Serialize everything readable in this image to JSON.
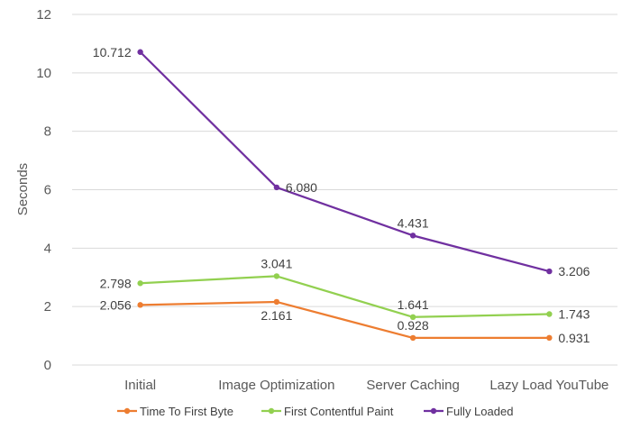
{
  "chart_data": {
    "type": "line",
    "categories": [
      "Initial",
      "Image Optimization",
      "Server Caching",
      "Lazy Load YouTube"
    ],
    "ylabel": "Seconds",
    "ylim": [
      0,
      12
    ],
    "yticks": [
      0,
      2,
      4,
      6,
      8,
      10,
      12
    ],
    "grid": "horizontal",
    "legend_position": "bottom",
    "series": [
      {
        "name": "Time To First Byte",
        "color": "#ed7d31",
        "values": [
          2.056,
          2.161,
          0.928,
          0.931
        ],
        "labels": [
          "2.056",
          "2.161",
          "0.928",
          "0.931"
        ]
      },
      {
        "name": "First Contentful Paint",
        "color": "#92d050",
        "values": [
          2.798,
          3.041,
          1.641,
          1.743
        ],
        "labels": [
          "2.798",
          "3.041",
          "1.641",
          "1.743"
        ]
      },
      {
        "name": "Fully Loaded",
        "color": "#7030a0",
        "values": [
          10.712,
          6.08,
          4.431,
          3.206
        ],
        "labels": [
          "10.712",
          "6.080",
          "4.431",
          "3.206"
        ]
      }
    ]
  }
}
